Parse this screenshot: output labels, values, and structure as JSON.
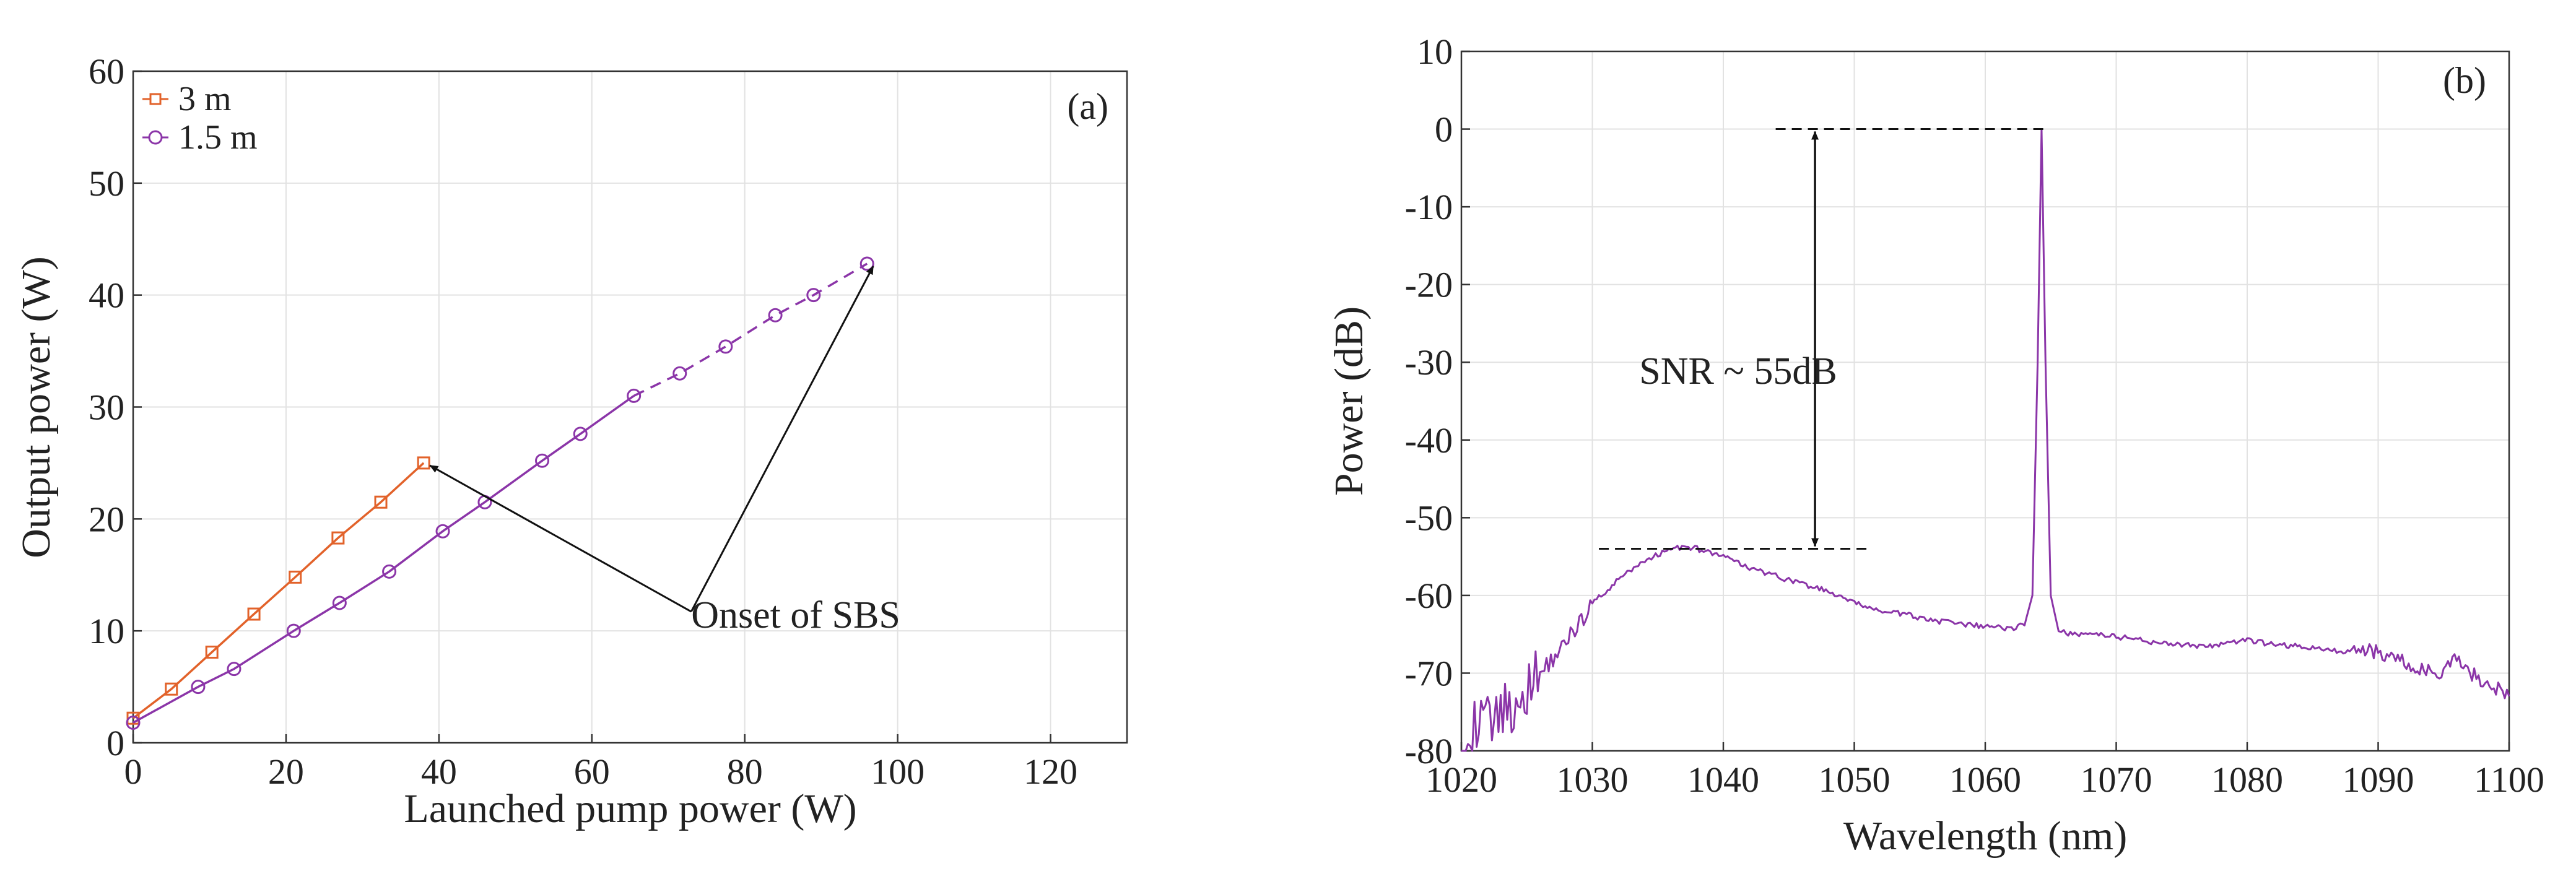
{
  "colors": {
    "orange": "#e2622a",
    "purple": "#8b35a8",
    "axis": "#333333",
    "grid": "#e2e2e2",
    "annotation": "#111111"
  },
  "chart_data": [
    {
      "type": "line",
      "panel_label": "(a)",
      "title": "",
      "xlabel": "Launched pump power (W)",
      "ylabel": "Output power (W)",
      "xlim": [
        0,
        130
      ],
      "ylim": [
        0,
        60
      ],
      "xticks": [
        "0",
        "20",
        "40",
        "60",
        "80",
        "100",
        "120"
      ],
      "yticks": [
        "0",
        "10",
        "20",
        "30",
        "40",
        "50",
        "60"
      ],
      "grid": true,
      "legend_position": "top-left",
      "series": [
        {
          "name": "3 m",
          "marker": "square",
          "color_key": "orange",
          "x": [
            0,
            5,
            10.3,
            15.8,
            21.2,
            26.8,
            32.4,
            38
          ],
          "y": [
            2.2,
            4.8,
            8.1,
            11.5,
            14.8,
            18.3,
            21.5,
            25
          ]
        },
        {
          "name": "1.5 m",
          "marker": "circle",
          "color_key": "purple",
          "solid_until_index": 10,
          "x": [
            0,
            8.5,
            13.2,
            21,
            27,
            33.5,
            40.5,
            46,
            53.5,
            58.5,
            65.5,
            71.5,
            77.5,
            84,
            89,
            96
          ],
          "y": [
            1.8,
            5.0,
            6.6,
            10.0,
            12.5,
            15.3,
            18.9,
            21.5,
            25.2,
            27.6,
            31.0,
            33.0,
            35.4,
            38.2,
            40.0,
            42.8
          ]
        }
      ],
      "annotations": [
        {
          "text": "Onset of SBS",
          "x": 73,
          "y": 11.5,
          "arrows_to": [
            [
              38,
              25
            ],
            [
              96,
              42.8
            ]
          ]
        }
      ]
    },
    {
      "type": "line",
      "panel_label": "(b)",
      "title": "",
      "xlabel": "Wavelength (nm)",
      "ylabel": "Power (dB)",
      "xlim": [
        1020,
        1100
      ],
      "ylim": [
        -80,
        10
      ],
      "xticks": [
        "1020",
        "1030",
        "1040",
        "1050",
        "1060",
        "1070",
        "1080",
        "1090",
        "1100"
      ],
      "yticks": [
        "10",
        "0",
        "-10",
        "-20",
        "-30",
        "-40",
        "-50",
        "-60",
        "-70",
        "-80"
      ],
      "grid": true,
      "series": [
        {
          "name": "spectrum",
          "color_key": "purple",
          "x": [
            1020,
            1022,
            1024,
            1026,
            1028,
            1030,
            1032,
            1034,
            1036,
            1037,
            1038,
            1040,
            1042,
            1044,
            1046,
            1048,
            1050,
            1052,
            1054,
            1056,
            1058,
            1060,
            1062,
            1063,
            1063.6,
            1064.0,
            1064.3,
            1064.6,
            1065.0,
            1065.6,
            1066,
            1068,
            1070,
            1072,
            1074,
            1076,
            1078,
            1080,
            1082,
            1084,
            1086,
            1088,
            1090,
            1092,
            1094,
            1095,
            1096,
            1097,
            1098,
            1099,
            1100
          ],
          "y": [
            -78,
            -76,
            -74,
            -70,
            -66,
            -61,
            -58,
            -55.5,
            -54,
            -53.7,
            -54,
            -55,
            -56.5,
            -57.5,
            -58.5,
            -59.5,
            -61,
            -62,
            -62.5,
            -63.2,
            -63.7,
            -64,
            -64.2,
            -63.8,
            -60,
            -30,
            0,
            -30,
            -60,
            -64.6,
            -64.8,
            -65,
            -65.3,
            -65.8,
            -66.2,
            -66.5,
            -66.4,
            -65.8,
            -66.3,
            -66.6,
            -67,
            -67.2,
            -67.3,
            -68.5,
            -70,
            -70,
            -68,
            -70,
            -71,
            -72,
            -73
          ]
        }
      ],
      "reference_lines": [
        {
          "y": 0,
          "x_range": [
            1044,
            1064.5
          ]
        },
        {
          "y": -54,
          "x_range": [
            1030.5,
            1051
          ]
        }
      ],
      "annotations": [
        {
          "text": "SNR ~ 55dB",
          "x": 1035,
          "y": -31,
          "arrow_between": [
            [
              1047,
              0
            ],
            [
              1047,
              -54
            ]
          ]
        }
      ]
    }
  ]
}
